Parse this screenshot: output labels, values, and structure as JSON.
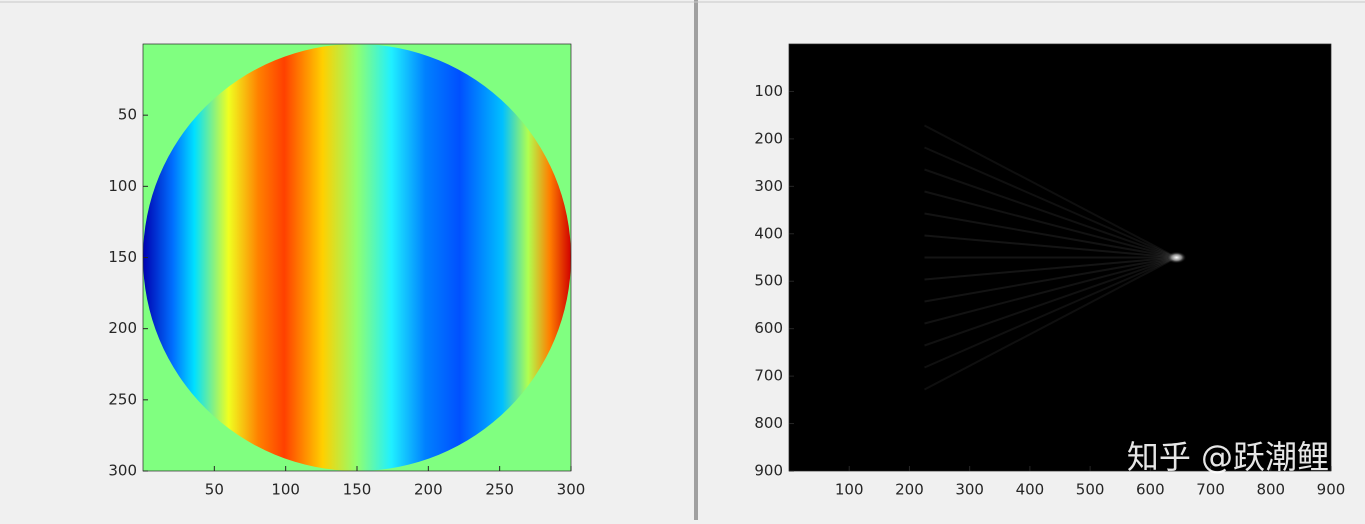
{
  "chart_data": [
    {
      "type": "heatmap",
      "xlim": [
        0,
        300
      ],
      "ylim": [
        0,
        300
      ],
      "y_reversed": true,
      "xticks": [
        50,
        100,
        150,
        200,
        250,
        300
      ],
      "yticks": [
        50,
        100,
        150,
        200,
        250,
        300
      ]
    },
    {
      "type": "heatmap",
      "xlim": [
        0,
        900
      ],
      "ylim": [
        0,
        900
      ],
      "y_reversed": true,
      "xticks": [
        100,
        200,
        300,
        400,
        500,
        600,
        700,
        800,
        900
      ],
      "yticks": [
        100,
        200,
        300,
        400,
        500,
        600,
        700,
        800,
        900
      ],
      "watermark": "知乎 @跃潮鲤"
    }
  ]
}
